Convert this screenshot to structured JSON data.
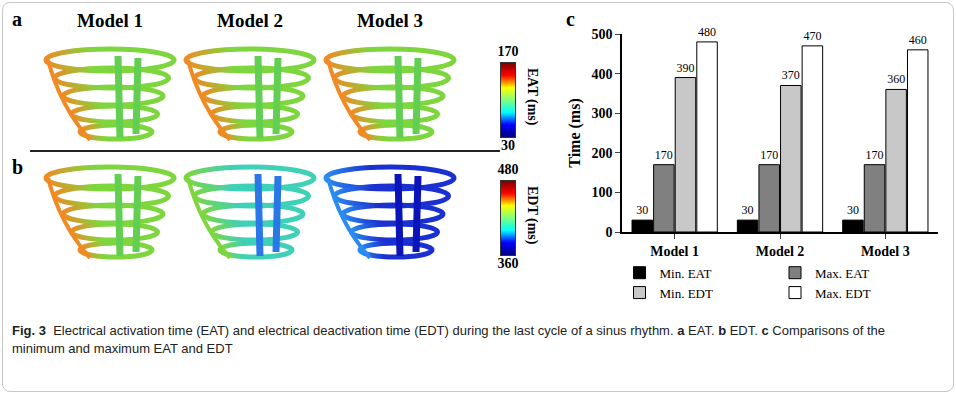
{
  "panels_ab": {
    "columns": [
      "Model 1",
      "Model 2",
      "Model 3"
    ],
    "rows": [
      {
        "letter": "a",
        "colorbar": {
          "title": "EAT (ms)",
          "min": 30,
          "max": 170
        }
      },
      {
        "letter": "b",
        "colorbar": {
          "title": "EDT (ms)",
          "min": 360,
          "max": 480
        }
      }
    ]
  },
  "chart_letter": "c",
  "chart_data": {
    "type": "bar",
    "categories": [
      "Model 1",
      "Model 2",
      "Model 3"
    ],
    "series": [
      {
        "name": "Min. EAT",
        "color": "#000000",
        "values": [
          30,
          30,
          30
        ]
      },
      {
        "name": "Max. EAT",
        "color": "#808080",
        "values": [
          170,
          170,
          170
        ]
      },
      {
        "name": "Min. EDT",
        "color": "#c8c8c8",
        "values": [
          390,
          370,
          360
        ]
      },
      {
        "name": "Max. EDT",
        "color": "#ffffff",
        "values": [
          480,
          470,
          460
        ]
      }
    ],
    "y_label": "Time (ms)",
    "ylim": [
      0,
      500
    ],
    "yticks": [
      0,
      100,
      200,
      300,
      400,
      500
    ],
    "data_labels": true,
    "legend": "bottom",
    "grid": false
  },
  "caption": [
    {
      "text": "Fig. 3",
      "bold": true
    },
    {
      "text": "  Electrical activation time (EAT) and electrical deactivation time (EDT) during the last cycle of a sinus rhythm. ",
      "bold": false
    },
    {
      "text": "a",
      "bold": true
    },
    {
      "text": " EAT. ",
      "bold": false
    },
    {
      "text": "b",
      "bold": true
    },
    {
      "text": " EDT. ",
      "bold": false
    },
    {
      "text": "c",
      "bold": true
    },
    {
      "text": " Comparisons of the minimum and maximum EAT and EDT",
      "bold": false
    }
  ]
}
